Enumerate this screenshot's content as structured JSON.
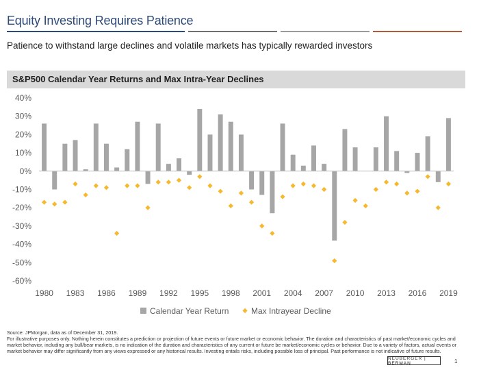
{
  "header": {
    "title": "Equity Investing Requires Patience",
    "subtitle": "Patience to withstand large declines and volatile markets has typically rewarded investors",
    "rule_colors": [
      "#2e4a78",
      "#6f6f6f",
      "#9a9a9a",
      "#b05a3c"
    ]
  },
  "chart_panel": {
    "title": "S&P500 Calendar Year Returns and Max Intra-Year Declines"
  },
  "chart_data": {
    "type": "bar",
    "title": "S&P500 Calendar Year Returns and Max Intra-Year Declines",
    "xlabel": "",
    "ylabel": "",
    "ylim": [
      -60,
      40
    ],
    "y_ticks": [
      40,
      30,
      20,
      10,
      0,
      -10,
      -20,
      -30,
      -40,
      -50,
      -60
    ],
    "y_tick_labels": [
      "40%",
      "30%",
      "20%",
      "10%",
      "0%",
      "-10%",
      "-20%",
      "-30%",
      "-40%",
      "-50%",
      "-60%"
    ],
    "x_tick_years": [
      1980,
      1983,
      1986,
      1989,
      1992,
      1995,
      1998,
      2001,
      2004,
      2007,
      2010,
      2013,
      2016,
      2019
    ],
    "x_tick_labels": [
      "1980",
      "1983",
      "1986",
      "1989",
      "1992",
      "1995",
      "1998",
      "2001",
      "2004",
      "2007",
      "2010",
      "2013",
      "2016",
      "2019"
    ],
    "categories": [
      1980,
      1981,
      1982,
      1983,
      1984,
      1985,
      1986,
      1987,
      1988,
      1989,
      1990,
      1991,
      1992,
      1993,
      1994,
      1995,
      1996,
      1997,
      1998,
      1999,
      2000,
      2001,
      2002,
      2003,
      2004,
      2005,
      2006,
      2007,
      2008,
      2009,
      2010,
      2011,
      2012,
      2013,
      2014,
      2015,
      2016,
      2017,
      2018,
      2019
    ],
    "series": [
      {
        "name": "Calendar Year Return",
        "kind": "bar",
        "color": "#a6a6a6",
        "values": [
          26,
          -10,
          15,
          17,
          1,
          26,
          15,
          2,
          12,
          27,
          -7,
          26,
          4,
          7,
          -2,
          34,
          20,
          31,
          27,
          20,
          -10,
          -13,
          -23,
          26,
          9,
          3,
          14,
          4,
          -38,
          23,
          13,
          0,
          13,
          30,
          11,
          -1,
          10,
          19,
          -6,
          29
        ]
      },
      {
        "name": "Max Intrayear Decline",
        "kind": "diamond",
        "color": "#f5b82e",
        "values": [
          -17,
          -18,
          -17,
          -7,
          -13,
          -8,
          -9,
          -34,
          -8,
          -8,
          -20,
          -6,
          -6,
          -5,
          -9,
          -3,
          -8,
          -11,
          -19,
          -12,
          -17,
          -30,
          -34,
          -14,
          -8,
          -7,
          -8,
          -10,
          -49,
          -28,
          -16,
          -19,
          -10,
          -6,
          -7,
          -12,
          -11,
          -3,
          -20,
          -7
        ]
      }
    ],
    "legend": [
      "Calendar Year Return",
      "Max Intrayear Decline"
    ],
    "legend_position": "bottom",
    "grid": false
  },
  "footer": {
    "source": "Source: JPMorgan, data as of December 31, 2019.",
    "disclaimer": "For illustrative purposes only. Nothing herein constitutes a prediction or projection of future events or future market or economic behavior. The duration and characteristics of past market/economic cycles and market behavior, including any bull/bear markets, is no indication of the duration and characteristics of any current or future be market/economic cycles or behavior. Due to a variety of factors, actual events or market behavior may differ significantly from any views expressed or any historical results. Investing entails risks, including possible loss of principal. Past performance is not indicative of future results.",
    "logo": "NEUBERGER | BERMAN",
    "page_number": "1"
  }
}
